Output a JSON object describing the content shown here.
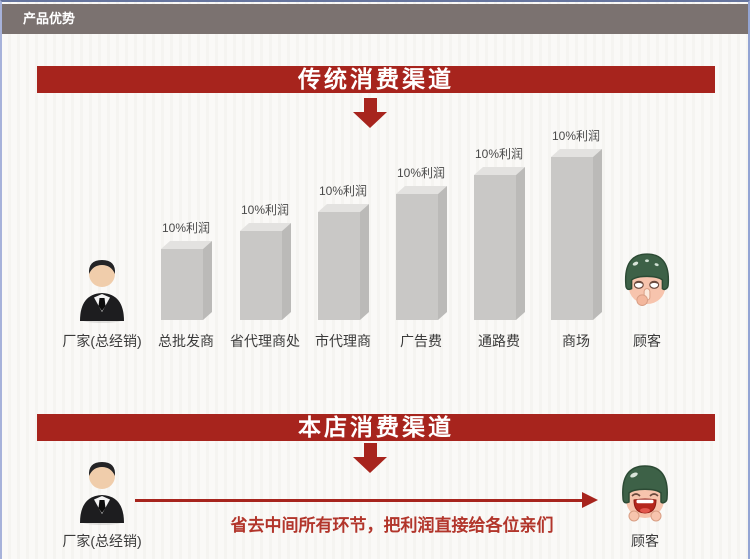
{
  "header": {
    "title": "产品优势"
  },
  "colors": {
    "banner_red": "#a7241d",
    "caption_red": "#b2352b",
    "header_bg": "#7b7270",
    "bar_front": "#c9c8c6",
    "bar_top": "#e3e2e0",
    "bar_side": "#bbbab8"
  },
  "chart_data": {
    "type": "bar",
    "title": "传统消费渠道",
    "categories": [
      "厂家(总经销)",
      "总批发商",
      "省代理商处",
      "市代理商",
      "广告费",
      "通路费",
      "商场",
      "顾客"
    ],
    "start_node": {
      "label": "厂家(总经销)",
      "icon": "manufacturer"
    },
    "end_node": {
      "label": "顾客",
      "icon": "customer-sad"
    },
    "bars": [
      {
        "category": "总批发商",
        "value": 10,
        "value_label": "10%利润"
      },
      {
        "category": "省代理商处",
        "value": 10,
        "value_label": "10%利润"
      },
      {
        "category": "市代理商",
        "value": 10,
        "value_label": "10%利润"
      },
      {
        "category": "广告费",
        "value": 10,
        "value_label": "10%利润"
      },
      {
        "category": "通路费",
        "value": 10,
        "value_label": "10%利润"
      },
      {
        "category": "商场",
        "value": 10,
        "value_label": "10%利润"
      }
    ],
    "legend": false,
    "layout_hint": "bars rise left-to-right; each middleman step adds 10% profit"
  },
  "traditional": {
    "banner": "传统消费渠道"
  },
  "store": {
    "banner": "本店消费渠道",
    "from_label": "厂家(总经销)",
    "to_label": "顾客",
    "caption": "省去中间所有环节，把利润直接给各位亲们"
  }
}
